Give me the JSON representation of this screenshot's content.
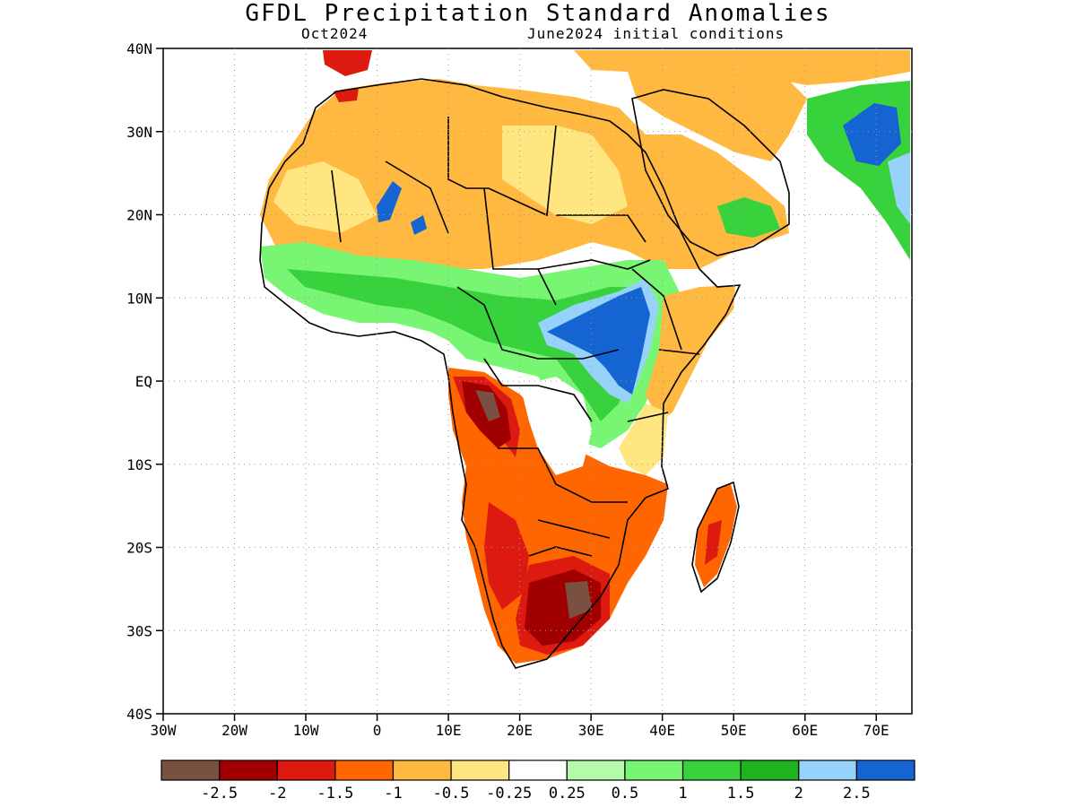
{
  "title": "GFDL Precipitation Standard Anomalies",
  "subtitle_left": "Oct2024",
  "subtitle_right": "June2024 initial conditions",
  "map": {
    "lon_range": [
      -30,
      75
    ],
    "lat_range": [
      -40,
      40
    ],
    "lat_ticks": [
      {
        "value": 40,
        "label": "40N"
      },
      {
        "value": 30,
        "label": "30N"
      },
      {
        "value": 20,
        "label": "20N"
      },
      {
        "value": 10,
        "label": "10N"
      },
      {
        "value": 0,
        "label": "EQ"
      },
      {
        "value": -10,
        "label": "10S"
      },
      {
        "value": -20,
        "label": "20S"
      },
      {
        "value": -30,
        "label": "30S"
      },
      {
        "value": -40,
        "label": "40S"
      }
    ],
    "lon_ticks": [
      {
        "value": -30,
        "label": "30W"
      },
      {
        "value": -20,
        "label": "20W"
      },
      {
        "value": -10,
        "label": "10W"
      },
      {
        "value": 0,
        "label": "0"
      },
      {
        "value": 10,
        "label": "10E"
      },
      {
        "value": 20,
        "label": "20E"
      },
      {
        "value": 30,
        "label": "30E"
      },
      {
        "value": 40,
        "label": "40E"
      },
      {
        "value": 50,
        "label": "50E"
      },
      {
        "value": 60,
        "label": "60E"
      },
      {
        "value": 70,
        "label": "70E"
      }
    ]
  },
  "colorbar": {
    "colors": [
      "#7a5040",
      "#a00000",
      "#dd1a10",
      "#ff6600",
      "#ffb840",
      "#ffe680",
      "#ffffff",
      "#b4faaa",
      "#78f572",
      "#37d23c",
      "#1eb41e",
      "#96d2fa",
      "#1464d2"
    ],
    "labels": [
      "-2.5",
      "-2",
      "-1.5",
      "-1",
      "-0.5",
      "-0.25",
      "0.25",
      "0.5",
      "1",
      "1.5",
      "2",
      "2.5"
    ]
  },
  "colors": {
    "land_dry_light": "#ffb840",
    "land_dry_strong": "#ff6600",
    "wet_green": "#37d23c",
    "wet_blue": "#1464d2"
  }
}
